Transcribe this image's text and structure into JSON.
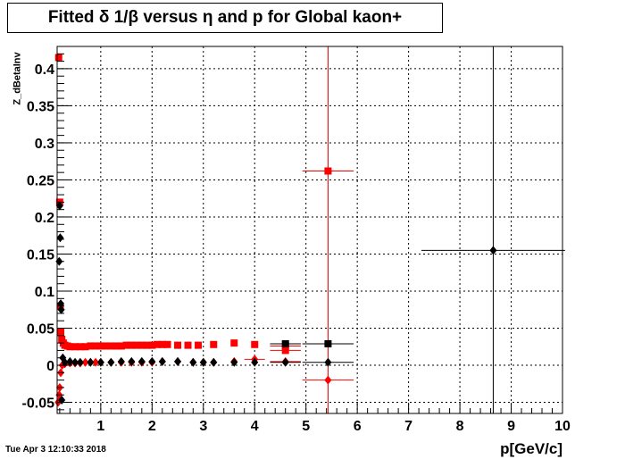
{
  "chart_data": {
    "type": "scatter",
    "title": "Fitted δ 1/β versus η and p for Global kaon+",
    "xlabel": "p[GeV/c]",
    "ylabel": "Z_dBetaInv",
    "xlim": [
      0.15,
      10
    ],
    "ylim": [
      -0.065,
      0.43
    ],
    "x_ticks": [
      "1",
      "2",
      "3",
      "4",
      "5",
      "6",
      "7",
      "8",
      "9",
      "10"
    ],
    "y_ticks": [
      "-0.05",
      "0",
      "0.05",
      "0.1",
      "0.15",
      "0.2",
      "0.25",
      "0.3",
      "0.35",
      "0.4"
    ],
    "grid": true,
    "series": [
      {
        "marker": "square",
        "color": "#ff0000",
        "points": [
          {
            "x": 0.18,
            "y": 0.415
          },
          {
            "x": 0.2,
            "y": 0.22
          },
          {
            "x": 0.21,
            "y": 0.08
          },
          {
            "x": 0.22,
            "y": 0.045
          },
          {
            "x": 0.24,
            "y": 0.035
          },
          {
            "x": 0.27,
            "y": 0.03
          },
          {
            "x": 0.3,
            "y": 0.027
          },
          {
            "x": 0.35,
            "y": 0.026
          },
          {
            "x": 0.4,
            "y": 0.025
          },
          {
            "x": 0.5,
            "y": 0.025
          },
          {
            "x": 0.6,
            "y": 0.025
          },
          {
            "x": 0.7,
            "y": 0.025
          },
          {
            "x": 0.8,
            "y": 0.026
          },
          {
            "x": 0.9,
            "y": 0.026
          },
          {
            "x": 1.0,
            "y": 0.026
          },
          {
            "x": 1.1,
            "y": 0.026
          },
          {
            "x": 1.2,
            "y": 0.026
          },
          {
            "x": 1.3,
            "y": 0.026
          },
          {
            "x": 1.4,
            "y": 0.026
          },
          {
            "x": 1.5,
            "y": 0.027
          },
          {
            "x": 1.6,
            "y": 0.027
          },
          {
            "x": 1.7,
            "y": 0.027
          },
          {
            "x": 1.8,
            "y": 0.027
          },
          {
            "x": 1.9,
            "y": 0.027
          },
          {
            "x": 2.0,
            "y": 0.027
          },
          {
            "x": 2.1,
            "y": 0.028
          },
          {
            "x": 2.2,
            "y": 0.028
          },
          {
            "x": 2.3,
            "y": 0.028
          },
          {
            "x": 2.5,
            "y": 0.027
          },
          {
            "x": 2.7,
            "y": 0.027
          },
          {
            "x": 2.9,
            "y": 0.027
          },
          {
            "x": 3.2,
            "y": 0.028
          },
          {
            "x": 3.6,
            "y": 0.03
          },
          {
            "x": 4.0,
            "y": 0.028
          },
          {
            "x": 4.6,
            "y": 0.026,
            "xerr": 0.3
          },
          {
            "x": 4.6,
            "y": 0.02,
            "xerr": 0.3
          },
          {
            "x": 5.43,
            "y": 0.262,
            "xerr": 0.5
          }
        ]
      },
      {
        "marker": "diamond",
        "color": "#ff0000",
        "points": [
          {
            "x": 0.17,
            "y": -0.05
          },
          {
            "x": 0.19,
            "y": -0.04
          },
          {
            "x": 0.2,
            "y": -0.03
          },
          {
            "x": 0.22,
            "y": -0.01
          },
          {
            "x": 0.25,
            "y": 0.0
          },
          {
            "x": 0.3,
            "y": 0.002
          },
          {
            "x": 0.4,
            "y": 0.003
          },
          {
            "x": 0.5,
            "y": 0.003
          },
          {
            "x": 0.6,
            "y": 0.003
          },
          {
            "x": 0.7,
            "y": 0.004
          },
          {
            "x": 0.8,
            "y": 0.004
          },
          {
            "x": 0.9,
            "y": 0.004
          },
          {
            "x": 1.0,
            "y": 0.004
          },
          {
            "x": 1.2,
            "y": 0.004
          },
          {
            "x": 1.4,
            "y": 0.004
          },
          {
            "x": 1.6,
            "y": 0.004
          },
          {
            "x": 1.8,
            "y": 0.004
          },
          {
            "x": 2.0,
            "y": 0.004
          },
          {
            "x": 2.2,
            "y": 0.005
          },
          {
            "x": 2.5,
            "y": 0.005
          },
          {
            "x": 2.8,
            "y": 0.004
          },
          {
            "x": 3.0,
            "y": 0.004
          },
          {
            "x": 3.2,
            "y": 0.004
          },
          {
            "x": 3.6,
            "y": 0.005
          },
          {
            "x": 4.0,
            "y": 0.008,
            "xerr": 0.2
          },
          {
            "x": 4.6,
            "y": 0.005,
            "xerr": 0.3
          },
          {
            "x": 5.43,
            "y": -0.02,
            "xerr": 0.5
          }
        ]
      },
      {
        "marker": "diamond",
        "color": "#000000",
        "points": [
          {
            "x": 0.19,
            "y": 0.14
          },
          {
            "x": 0.2,
            "y": 0.215
          },
          {
            "x": 0.21,
            "y": 0.172
          },
          {
            "x": 0.22,
            "y": 0.083
          },
          {
            "x": 0.23,
            "y": 0.075
          },
          {
            "x": 0.24,
            "y": -0.047
          },
          {
            "x": 0.26,
            "y": 0.01
          },
          {
            "x": 0.3,
            "y": 0.004
          },
          {
            "x": 0.4,
            "y": 0.005
          },
          {
            "x": 0.5,
            "y": 0.004
          },
          {
            "x": 0.6,
            "y": 0.004
          },
          {
            "x": 0.8,
            "y": 0.004
          },
          {
            "x": 1.0,
            "y": 0.004
          },
          {
            "x": 1.2,
            "y": 0.004
          },
          {
            "x": 1.4,
            "y": 0.005
          },
          {
            "x": 1.6,
            "y": 0.005
          },
          {
            "x": 1.8,
            "y": 0.005
          },
          {
            "x": 2.0,
            "y": 0.005
          },
          {
            "x": 2.2,
            "y": 0.005
          },
          {
            "x": 2.5,
            "y": 0.005
          },
          {
            "x": 2.8,
            "y": 0.004
          },
          {
            "x": 3.0,
            "y": 0.004
          },
          {
            "x": 3.2,
            "y": 0.004
          },
          {
            "x": 3.6,
            "y": 0.004
          },
          {
            "x": 4.0,
            "y": 0.004
          },
          {
            "x": 4.6,
            "y": 0.004,
            "xerr": 0.3
          },
          {
            "x": 5.43,
            "y": 0.004,
            "xerr": 0.5
          },
          {
            "x": 8.65,
            "y": 0.155,
            "xerr": 1.4
          }
        ]
      },
      {
        "marker": "square",
        "color": "#000000",
        "points": [
          {
            "x": 4.6,
            "y": 0.029,
            "xerr": 0.3
          },
          {
            "x": 5.43,
            "y": 0.029,
            "xerr": 0.5
          }
        ]
      }
    ],
    "vertical_lines": [
      {
        "x": 5.43,
        "color": "#cc0000"
      },
      {
        "x": 8.65,
        "color": "#000000"
      }
    ]
  },
  "footer": {
    "timestamp": "Tue Apr  3 12:10:33 2018"
  }
}
